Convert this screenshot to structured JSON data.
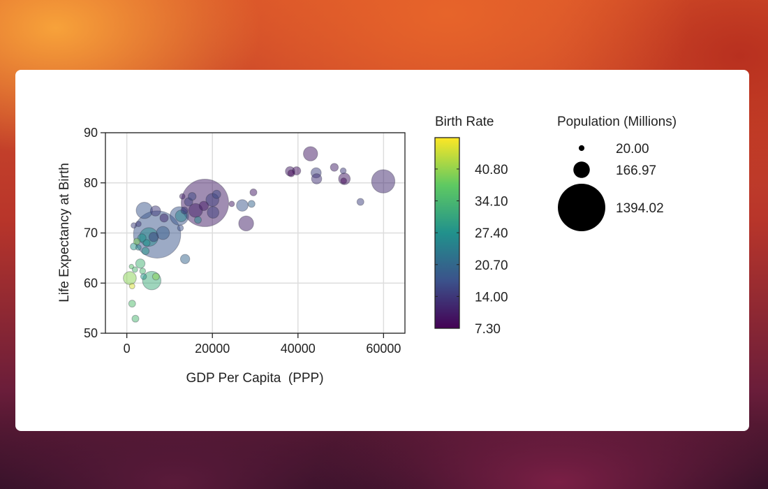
{
  "chart_data": {
    "type": "scatter",
    "xlabel": "GDP Per Capita  (PPP)",
    "ylabel": "Life Expectancy at Birth",
    "xlim": [
      -5000,
      65000
    ],
    "ylim": [
      50,
      90
    ],
    "xticks": [
      "0",
      "20000",
      "40000",
      "60000"
    ],
    "yticks": [
      "50",
      "60",
      "70",
      "80",
      "90"
    ],
    "grid": true,
    "colorbar": {
      "title": "Birth Rate",
      "colormap": "viridis",
      "range": [
        7.3,
        47.4
      ],
      "ticks": [
        "40.80",
        "34.10",
        "27.40",
        "20.70",
        "14.00",
        "7.30"
      ]
    },
    "size_legend": {
      "title": "Population (Millions)",
      "entries": [
        "20.00",
        "166.97",
        "1394.02"
      ]
    },
    "points_fields": [
      "gdp_per_capita",
      "life_expectancy",
      "population_millions",
      "birth_rate"
    ],
    "points": [
      [
        7080,
        69.7,
        1380,
        18
      ],
      [
        18250,
        76.0,
        1394,
        10.5
      ],
      [
        4090,
        74.5,
        165,
        18
      ],
      [
        6700,
        74.4,
        65,
        14
      ],
      [
        8710,
        73.0,
        43,
        12
      ],
      [
        1630,
        71.5,
        19,
        15
      ],
      [
        2720,
        71.8,
        19,
        14
      ],
      [
        5170,
        69.2,
        215,
        26
      ],
      [
        6260,
        69.2,
        54,
        15
      ],
      [
        8440,
        70.0,
        105,
        19
      ],
      [
        3530,
        69.0,
        43,
        27
      ],
      [
        4630,
        68.0,
        30,
        27
      ],
      [
        2340,
        68.3,
        27,
        39
      ],
      [
        1630,
        67.3,
        30,
        28
      ],
      [
        2720,
        67.1,
        19,
        26
      ],
      [
        4350,
        66.4,
        34,
        28
      ],
      [
        12260,
        73.4,
        212,
        18
      ],
      [
        12690,
        73.4,
        84,
        25
      ],
      [
        13460,
        74.5,
        30,
        14
      ],
      [
        12530,
        71.0,
        22,
        17
      ],
      [
        16620,
        72.6,
        30,
        26
      ],
      [
        15260,
        77.3,
        39,
        16
      ],
      [
        12970,
        77.3,
        19,
        11
      ],
      [
        14440,
        76.2,
        43,
        15
      ],
      [
        16070,
        74.5,
        120,
        11
      ],
      [
        17990,
        75.4,
        54,
        10
      ],
      [
        20000,
        76.6,
        105,
        15
      ],
      [
        20980,
        77.7,
        43,
        16
      ],
      [
        20160,
        74.1,
        84,
        15
      ],
      [
        24520,
        75.8,
        19,
        10
      ],
      [
        26980,
        75.5,
        84,
        18
      ],
      [
        29150,
        75.8,
        30,
        20
      ],
      [
        29590,
        78.1,
        30,
        10
      ],
      [
        27890,
        71.9,
        138,
        11
      ],
      [
        13620,
        64.8,
        54,
        20
      ],
      [
        3160,
        63.9,
        54,
        33
      ],
      [
        1080,
        63.3,
        13,
        36
      ],
      [
        1900,
        62.7,
        19,
        34
      ],
      [
        3700,
        62.4,
        22,
        34
      ],
      [
        3920,
        61.3,
        22,
        28
      ],
      [
        700,
        61.0,
        105,
        40
      ],
      [
        5820,
        60.5,
        212,
        32
      ],
      [
        6800,
        61.3,
        30,
        40
      ],
      [
        1240,
        59.4,
        19,
        45
      ],
      [
        1240,
        55.9,
        30,
        35
      ],
      [
        2010,
        52.9,
        30,
        34
      ],
      [
        42930,
        85.8,
        126,
        10
      ],
      [
        38150,
        82.3,
        54,
        10
      ],
      [
        38420,
        81.9,
        30,
        8
      ],
      [
        39670,
        82.4,
        43,
        9
      ],
      [
        44240,
        82.0,
        65,
        15
      ],
      [
        44360,
        80.8,
        65,
        13
      ],
      [
        48500,
        83.1,
        39,
        11
      ],
      [
        50570,
        82.4,
        22,
        14
      ],
      [
        50850,
        80.8,
        84,
        10
      ],
      [
        50680,
        80.4,
        22,
        8
      ],
      [
        59930,
        80.3,
        337,
        12
      ],
      [
        54600,
        76.2,
        30,
        15
      ]
    ]
  }
}
